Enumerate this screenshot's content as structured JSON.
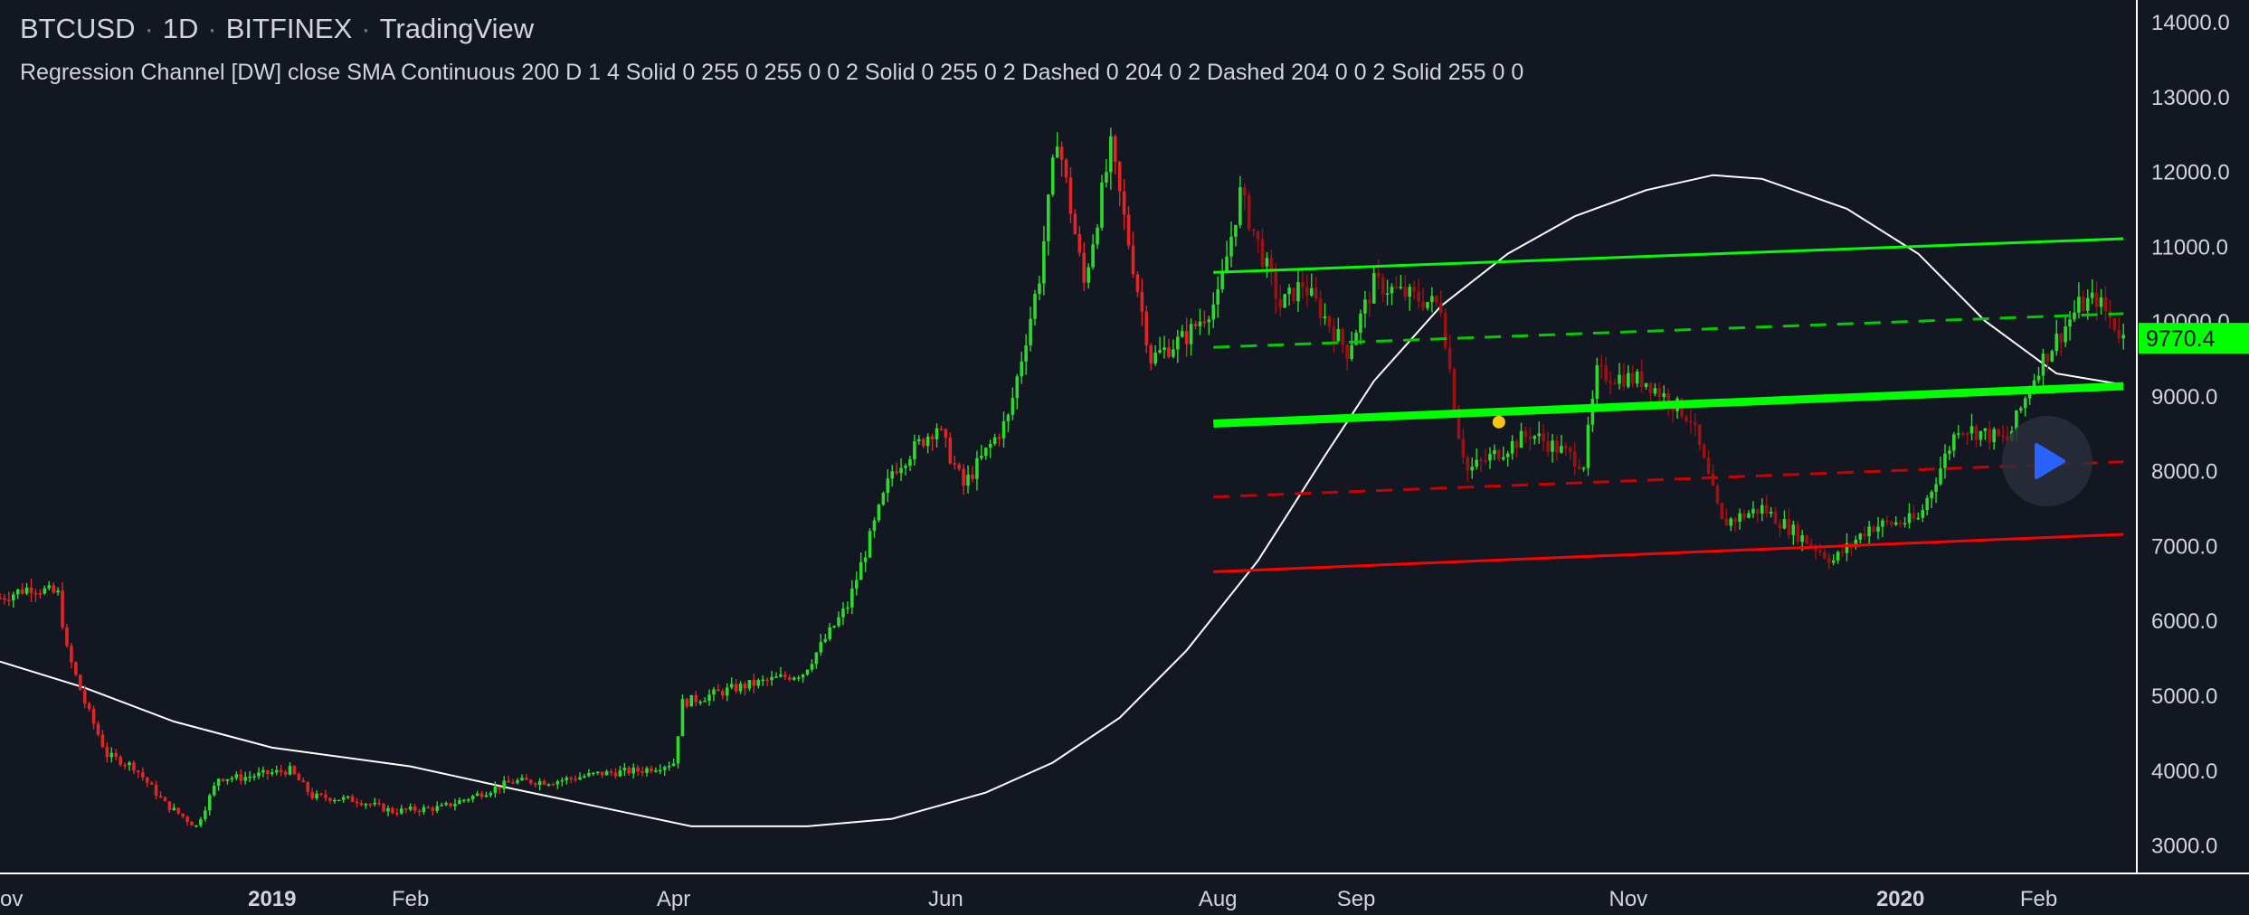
{
  "header": {
    "symbol": "BTCUSD",
    "interval": "1D",
    "exchange": "BITFINEX",
    "brand": "TradingView",
    "separator": "·"
  },
  "study": {
    "legend": "Regression Channel [DW] close SMA Continuous 200 D 1 4 Solid 0 255 0 255 0 0 2 Solid 0 255 0 2 Dashed 0 204 0 2 Dashed 204 0 0 2 Solid 255 0 0"
  },
  "price_badge": {
    "label": "9770.4",
    "value": 9770.4,
    "color": "#00ff00"
  },
  "colors": {
    "background": "#131722",
    "up_candle": "#2fd82f",
    "down_candle": "#e32424",
    "down_candle_in_channel": "#9c1212",
    "sma": "#ffffff",
    "channel_upper": "#00ff00",
    "channel_mid": "#00ff00",
    "channel_mid_dashed_up": "#00cc00",
    "channel_mid_dashed_down": "#cc0000",
    "channel_lower": "#ff0000",
    "axis_text": "#d1d4dc",
    "marker_dot": "#f5c518",
    "play_icon": "#2962ff"
  },
  "icons": {
    "play": "play-icon",
    "dot": "event-dot"
  },
  "chart_data": {
    "type": "candlestick",
    "x_axis": {
      "ticks": [
        {
          "label": "ov",
          "date": "2018-11-01",
          "bold": false
        },
        {
          "label": "2019",
          "date": "2019-01-01",
          "bold": true
        },
        {
          "label": "Feb",
          "date": "2019-02-01",
          "bold": false
        },
        {
          "label": "Apr",
          "date": "2019-04-01",
          "bold": false
        },
        {
          "label": "Jun",
          "date": "2019-06-01",
          "bold": false
        },
        {
          "label": "Aug",
          "date": "2019-08-01",
          "bold": false
        },
        {
          "label": "Sep",
          "date": "2019-09-01",
          "bold": false
        },
        {
          "label": "Nov",
          "date": "2019-11-01",
          "bold": false
        },
        {
          "label": "2020",
          "date": "2020-01-01",
          "bold": true
        },
        {
          "label": "Feb",
          "date": "2020-02-01",
          "bold": false
        }
      ]
    },
    "y_axis": {
      "ticks": [
        {
          "label": "14000.0",
          "value": 14000
        },
        {
          "label": "13000.0",
          "value": 13000
        },
        {
          "label": "12000.0",
          "value": 12000
        },
        {
          "label": "11000.0",
          "value": 11000
        },
        {
          "label": "10000.0",
          "value": 10000
        },
        {
          "label": "9000.0",
          "value": 9000
        },
        {
          "label": "8000.0",
          "value": 8000
        },
        {
          "label": "7000.0",
          "value": 7000
        },
        {
          "label": "6000.0",
          "value": 6000
        },
        {
          "label": "5000.0",
          "value": 5000
        },
        {
          "label": "4000.0",
          "value": 4000
        },
        {
          "label": "3000.0",
          "value": 3000
        }
      ],
      "range": [
        2620,
        14290
      ]
    },
    "x_range": [
      "2018-11-01",
      "2020-02-23"
    ],
    "close_path": [
      [
        "2018-11-01",
        6300
      ],
      [
        "2018-11-08",
        6450
      ],
      [
        "2018-11-14",
        6350
      ],
      [
        "2018-11-16",
        5600
      ],
      [
        "2018-11-20",
        4900
      ],
      [
        "2018-11-25",
        4200
      ],
      [
        "2018-12-01",
        4050
      ],
      [
        "2018-12-08",
        3550
      ],
      [
        "2018-12-15",
        3250
      ],
      [
        "2018-12-20",
        3900
      ],
      [
        "2018-12-25",
        3900
      ],
      [
        "2019-01-05",
        4000
      ],
      [
        "2019-01-10",
        3650
      ],
      [
        "2019-01-20",
        3600
      ],
      [
        "2019-01-28",
        3450
      ],
      [
        "2019-02-08",
        3500
      ],
      [
        "2019-02-15",
        3650
      ],
      [
        "2019-02-24",
        3850
      ],
      [
        "2019-03-05",
        3850
      ],
      [
        "2019-03-15",
        3950
      ],
      [
        "2019-03-25",
        4000
      ],
      [
        "2019-04-01",
        4100
      ],
      [
        "2019-04-03",
        4900
      ],
      [
        "2019-04-15",
        5100
      ],
      [
        "2019-04-30",
        5300
      ],
      [
        "2019-05-10",
        6200
      ],
      [
        "2019-05-20",
        8000
      ],
      [
        "2019-05-30",
        8600
      ],
      [
        "2019-06-05",
        7800
      ],
      [
        "2019-06-15",
        8700
      ],
      [
        "2019-06-22",
        10600
      ],
      [
        "2019-06-26",
        12500
      ],
      [
        "2019-07-02",
        10500
      ],
      [
        "2019-07-08",
        12300
      ],
      [
        "2019-07-17",
        9500
      ],
      [
        "2019-07-25",
        9800
      ],
      [
        "2019-08-01",
        10300
      ],
      [
        "2019-08-06",
        11700
      ],
      [
        "2019-08-15",
        10200
      ],
      [
        "2019-08-20",
        10500
      ],
      [
        "2019-08-30",
        9600
      ],
      [
        "2019-09-05",
        10500
      ],
      [
        "2019-09-20",
        10200
      ],
      [
        "2019-09-24",
        8500
      ],
      [
        "2019-09-26",
        8000
      ],
      [
        "2019-10-10",
        8500
      ],
      [
        "2019-10-22",
        8100
      ],
      [
        "2019-10-25",
        9300
      ],
      [
        "2019-11-05",
        9200
      ],
      [
        "2019-11-15",
        8700
      ],
      [
        "2019-11-22",
        7300
      ],
      [
        "2019-12-01",
        7500
      ],
      [
        "2019-12-17",
        6800
      ],
      [
        "2019-12-25",
        7250
      ],
      [
        "2020-01-05",
        7350
      ],
      [
        "2020-01-14",
        8600
      ],
      [
        "2020-01-25",
        8400
      ],
      [
        "2020-02-01",
        9400
      ],
      [
        "2020-02-10",
        10200
      ],
      [
        "2020-02-14",
        10300
      ],
      [
        "2020-02-20",
        9770
      ]
    ],
    "sma_200": [
      [
        "2018-11-01",
        5450
      ],
      [
        "2018-11-20",
        5100
      ],
      [
        "2018-12-10",
        4650
      ],
      [
        "2019-01-01",
        4300
      ],
      [
        "2019-02-01",
        4050
      ],
      [
        "2019-02-24",
        3750
      ],
      [
        "2019-03-20",
        3450
      ],
      [
        "2019-04-05",
        3250
      ],
      [
        "2019-05-01",
        3250
      ],
      [
        "2019-05-20",
        3350
      ],
      [
        "2019-06-10",
        3700
      ],
      [
        "2019-06-25",
        4100
      ],
      [
        "2019-07-10",
        4700
      ],
      [
        "2019-07-25",
        5600
      ],
      [
        "2019-08-10",
        6800
      ],
      [
        "2019-08-25",
        8200
      ],
      [
        "2019-09-05",
        9200
      ],
      [
        "2019-09-20",
        10200
      ],
      [
        "2019-10-05",
        10900
      ],
      [
        "2019-10-20",
        11400
      ],
      [
        "2019-11-05",
        11750
      ],
      [
        "2019-11-20",
        11950
      ],
      [
        "2019-12-01",
        11900
      ],
      [
        "2019-12-20",
        11500
      ],
      [
        "2020-01-05",
        10900
      ],
      [
        "2020-01-20",
        10000
      ],
      [
        "2020-02-05",
        9300
      ],
      [
        "2020-02-20",
        9150
      ]
    ],
    "regression_channel": {
      "start": "2019-07-31",
      "end": "2020-02-20",
      "upper_solid": {
        "start": 10650,
        "end": 11100
      },
      "upper_dashed": {
        "start": 9650,
        "end": 10100
      },
      "mid_solid": {
        "start": 8630,
        "end": 9130
      },
      "lower_dashed": {
        "start": 7650,
        "end": 8120
      },
      "lower_solid": {
        "start": 6650,
        "end": 7150
      }
    },
    "event_marker": {
      "date": "2019-10-03",
      "value": 8650
    },
    "current_price": 9770.4,
    "grid": false,
    "legend_placement": "top-left"
  }
}
